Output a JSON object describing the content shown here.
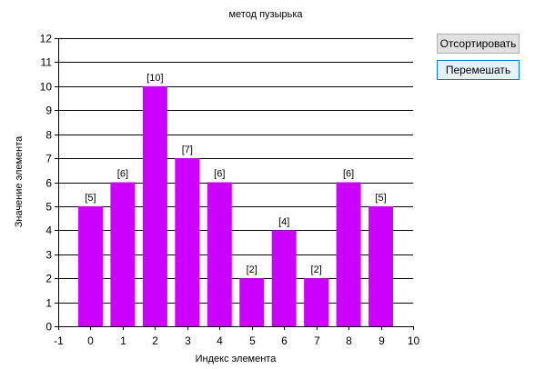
{
  "buttons": {
    "sort_label": "Отсортировать",
    "shuffle_label": "Перемешать"
  },
  "colors": {
    "bar": "#cc00ff",
    "grid": "#000000",
    "background": "#ffffff"
  },
  "chart_data": {
    "type": "bar",
    "title": "метод пузырька",
    "xlabel": "Индекс элемента",
    "ylabel": "Значение элемента",
    "x": [
      0,
      1,
      2,
      3,
      4,
      5,
      6,
      7,
      8,
      9
    ],
    "values": [
      5,
      6,
      10,
      7,
      6,
      2,
      4,
      2,
      6,
      5
    ],
    "data_labels": [
      "[5]",
      "[6]",
      "[10]",
      "[7]",
      "[6]",
      "[2]",
      "[4]",
      "[2]",
      "[6]",
      "[5]"
    ],
    "xlim": [
      -1,
      10
    ],
    "ylim": [
      0,
      12
    ],
    "xticks": [
      -1,
      0,
      1,
      2,
      3,
      4,
      5,
      6,
      7,
      8,
      9,
      10
    ],
    "yticks": [
      0,
      1,
      2,
      3,
      4,
      5,
      6,
      7,
      8,
      9,
      10,
      11,
      12
    ],
    "grid": "horizontal",
    "legend": "none"
  }
}
